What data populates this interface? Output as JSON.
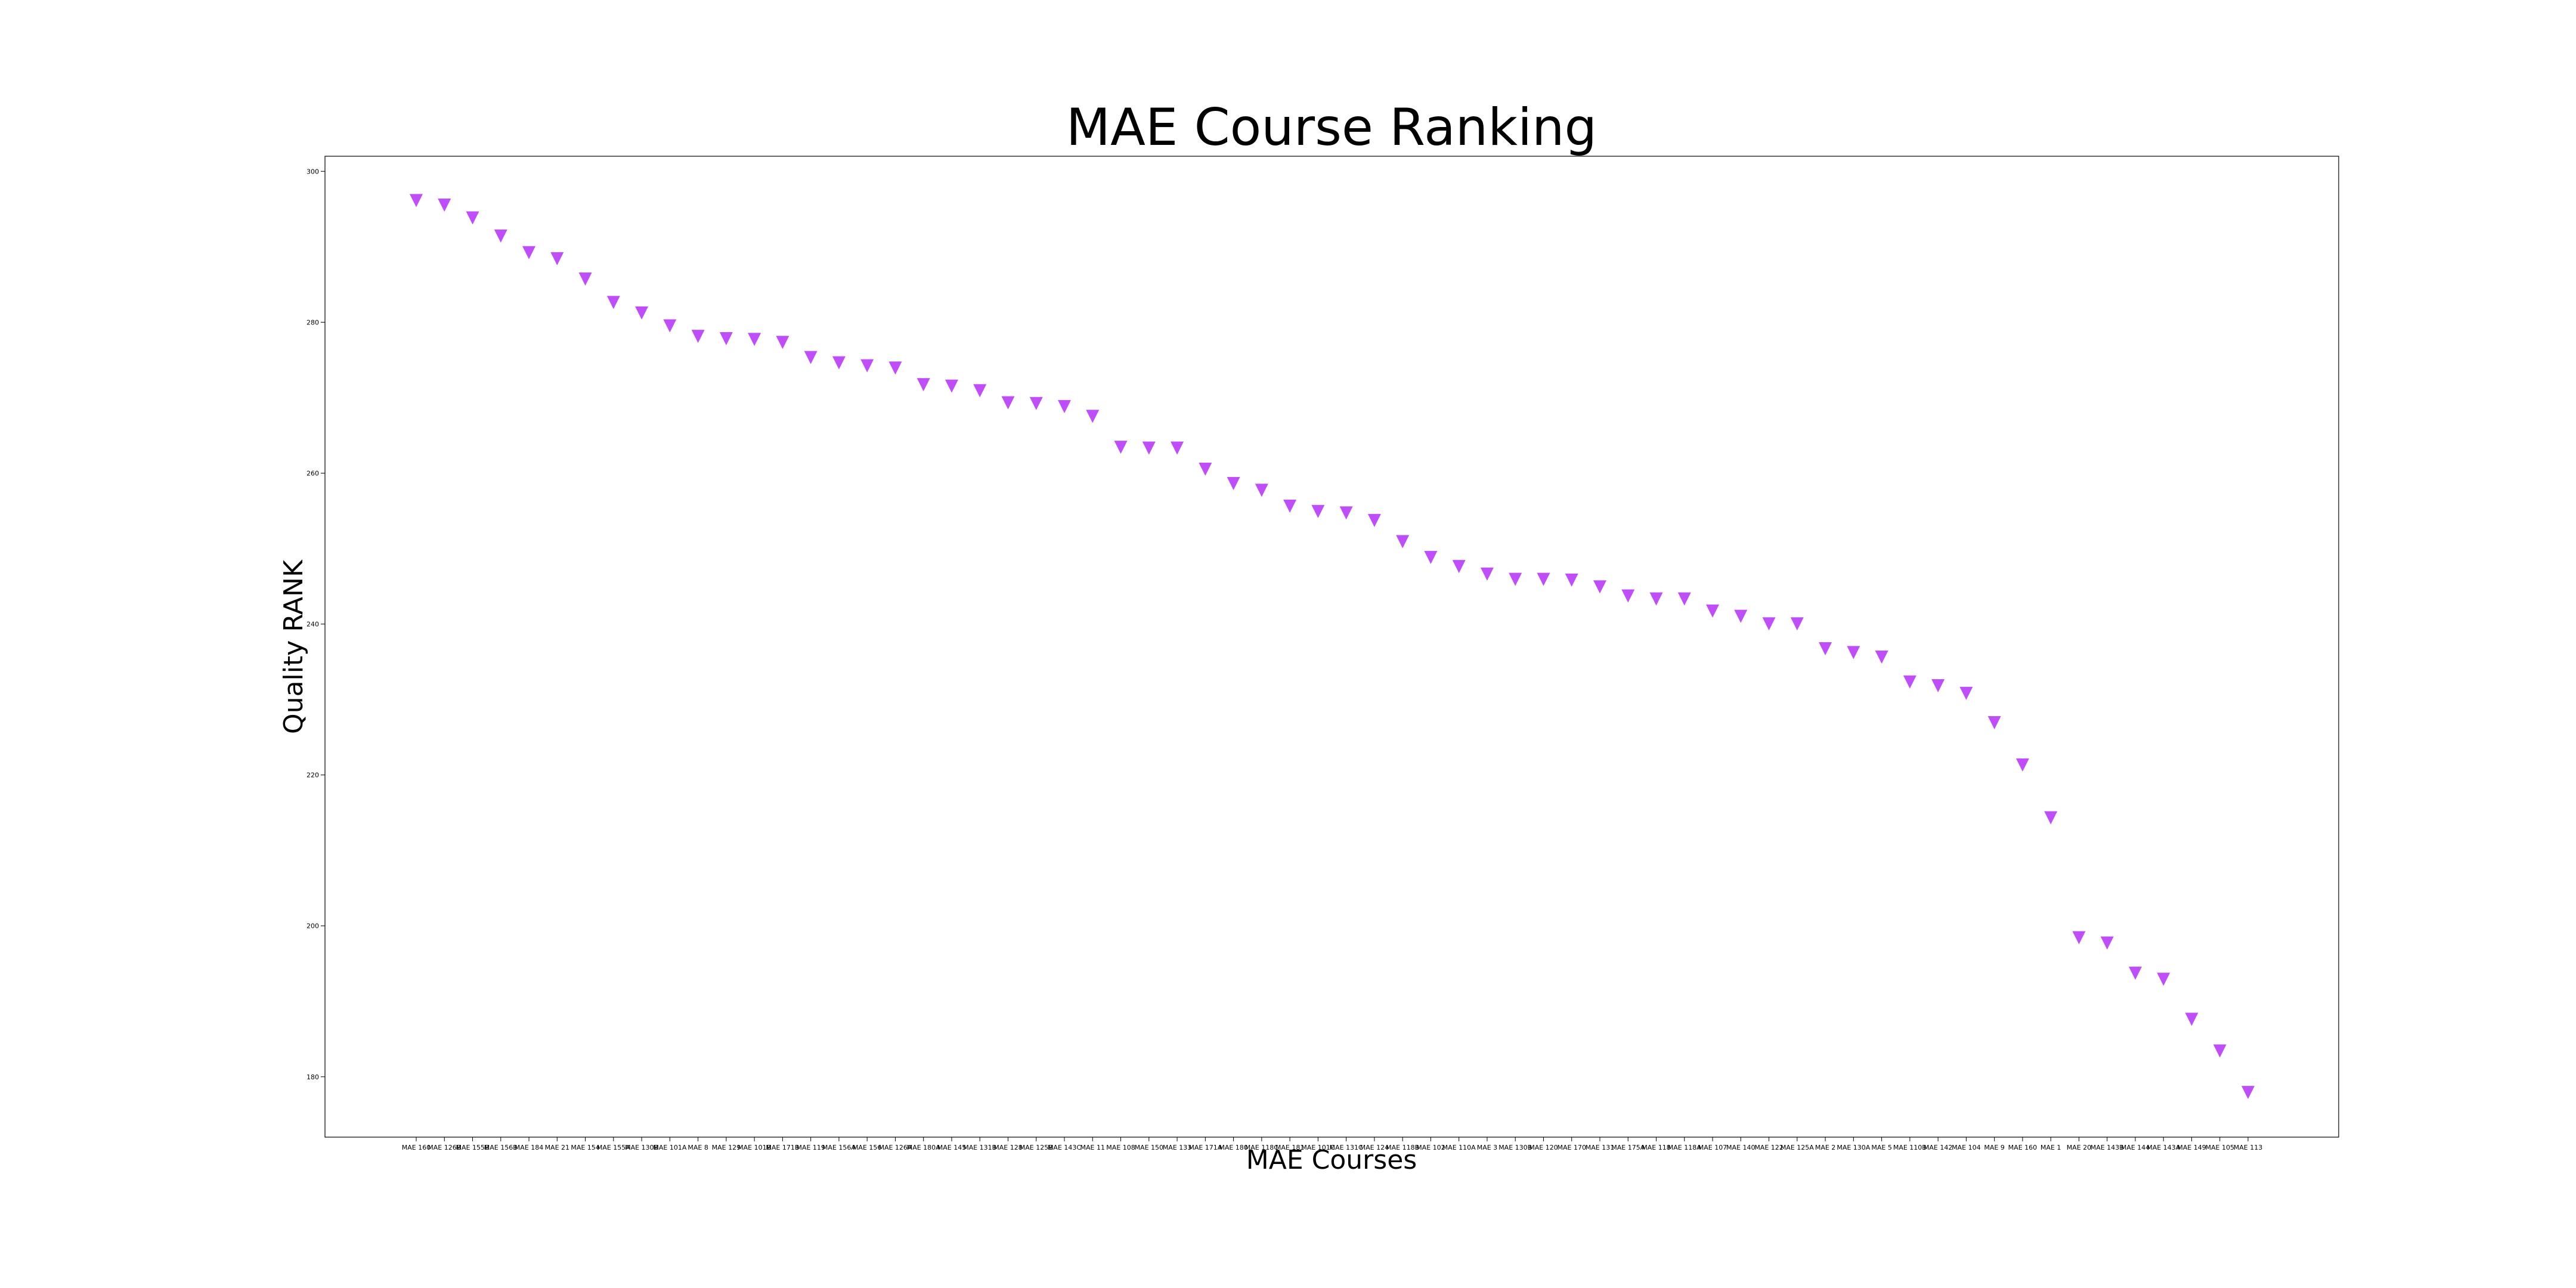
{
  "chart_data": {
    "type": "scatter",
    "title": "MAE Course Ranking",
    "xlabel": "MAE Courses",
    "ylabel": "Quality RANK",
    "marker": "triangle-down",
    "color": "#bf4dfa",
    "grid": false,
    "ylim": [
      172,
      302
    ],
    "yticks": [
      180,
      200,
      220,
      240,
      260,
      280,
      300
    ],
    "categories": [
      "MAE 160",
      "MAE 126B",
      "MAE 155B",
      "MAE 156B",
      "MAE 184",
      "MAE 21",
      "MAE 154",
      "MAE 155A",
      "MAE 130B",
      "MAE 101A",
      "MAE 8",
      "MAE 129",
      "MAE 101B",
      "MAE 171B",
      "MAE 119",
      "MAE 156A",
      "MAE 156",
      "MAE 126A",
      "MAE 180A",
      "MAE 145",
      "MAE 131B",
      "MAE 128",
      "MAE 125B",
      "MAE 143C",
      "MAE 11",
      "MAE 108",
      "MAE 150",
      "MAE 133",
      "MAE 171A",
      "MAE 180",
      "MAE 118C",
      "MAE 181",
      "MAE 101C",
      "MAE 131C",
      "MAE 124",
      "MAE 118B",
      "MAE 102",
      "MAE 110A",
      "MAE 3",
      "MAE 130B",
      "MAE 120",
      "MAE 170",
      "MAE 131",
      "MAE 175A",
      "MAE 118",
      "MAE 118A",
      "MAE 107",
      "MAE 140",
      "MAE 122",
      "MAE 125A",
      "MAE 2",
      "MAE 130A",
      "MAE 5",
      "MAE 110B",
      "MAE 142",
      "MAE 104",
      "MAE 9",
      "MAE 160",
      "MAE 1",
      "MAE 20",
      "MAE 143B",
      "MAE 144",
      "MAE 143A",
      "MAE 149",
      "MAE 105",
      "MAE 113"
    ],
    "values": [
      296.2,
      295.6,
      293.9,
      291.5,
      289.3,
      288.5,
      285.8,
      282.7,
      281.3,
      279.6,
      278.2,
      277.9,
      277.8,
      277.4,
      275.4,
      274.7,
      274.3,
      274.0,
      271.8,
      271.6,
      271.0,
      269.4,
      269.3,
      268.9,
      267.6,
      263.5,
      263.4,
      263.4,
      260.6,
      258.7,
      257.8,
      255.7,
      255.0,
      254.8,
      253.8,
      251.0,
      248.9,
      247.7,
      246.7,
      246.0,
      246.0,
      245.9,
      245.0,
      243.8,
      243.4,
      243.4,
      241.8,
      241.1,
      240.1,
      240.1,
      236.8,
      236.3,
      235.7,
      232.4,
      231.9,
      230.9,
      227.0,
      221.4,
      214.4,
      198.5,
      197.8,
      193.8,
      193.0,
      187.7,
      183.5,
      178.0
    ]
  }
}
